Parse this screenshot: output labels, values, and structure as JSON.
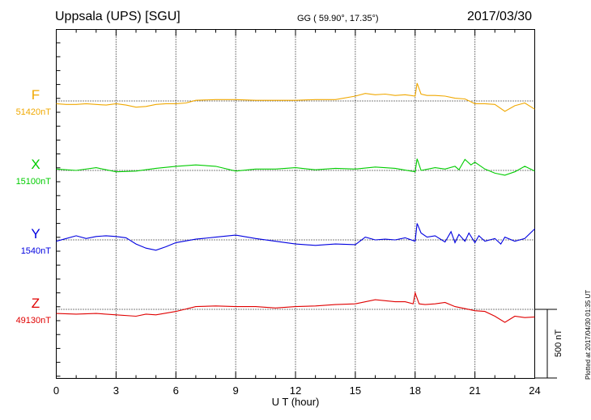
{
  "header": {
    "station": "Uppsala (UPS)  [SGU]",
    "coords": "GG ( 59.90°,  17.35°)",
    "date": "2017/03/30"
  },
  "footer": {
    "plotted": "Plotted at 2017/04/30 01:35 UT",
    "scale_label": "500 nT"
  },
  "chart_data": {
    "type": "line",
    "xlabel": "U T (hour)",
    "xlim": [
      0,
      24
    ],
    "xticks": [
      "0",
      "3",
      "6",
      "9",
      "12",
      "15",
      "18",
      "21",
      "24"
    ],
    "scale_bar_nT": 500,
    "grid": "dotted vertical every 3 h, dotted baseline per component",
    "series": [
      {
        "name": "F",
        "baseline_label": "51420nT",
        "color": "#f0a800",
        "x": [
          0,
          0.5,
          1,
          1.5,
          2,
          2.5,
          3,
          3.5,
          4,
          4.5,
          5,
          5.5,
          6,
          6.5,
          7,
          8,
          9,
          10,
          11,
          12,
          13,
          14,
          15,
          15.5,
          16,
          16.5,
          17,
          17.5,
          18,
          18.1,
          18.3,
          18.6,
          19,
          19.5,
          20,
          20.5,
          21,
          21.5,
          22,
          22.5,
          23,
          23.5,
          24
        ],
        "y": [
          -20,
          -25,
          -25,
          -20,
          -25,
          -30,
          -20,
          -30,
          -45,
          -40,
          -25,
          -20,
          -20,
          -15,
          5,
          10,
          10,
          5,
          5,
          5,
          10,
          10,
          35,
          55,
          45,
          50,
          40,
          45,
          35,
          130,
          50,
          40,
          40,
          35,
          20,
          15,
          -20,
          -20,
          -25,
          -75,
          -35,
          -15,
          -60
        ]
      },
      {
        "name": "X",
        "baseline_label": "15100nT",
        "color": "#00cc00",
        "x": [
          0,
          1,
          2,
          3,
          4,
          5,
          6,
          7,
          8,
          9,
          10,
          11,
          12,
          13,
          14,
          15,
          16,
          17,
          18,
          18.1,
          18.3,
          19,
          19.5,
          20,
          20.2,
          20.5,
          20.8,
          21,
          21.5,
          22,
          22.5,
          23,
          23.5,
          24
        ],
        "y": [
          10,
          0,
          20,
          -10,
          -5,
          15,
          30,
          40,
          30,
          -5,
          10,
          10,
          20,
          5,
          15,
          10,
          25,
          15,
          -10,
          85,
          0,
          20,
          10,
          30,
          5,
          80,
          40,
          60,
          10,
          -20,
          -35,
          -10,
          30,
          -5
        ]
      },
      {
        "name": "Y",
        "baseline_label": "1540nT",
        "color": "#0000e0",
        "x": [
          0,
          0.5,
          1,
          1.5,
          2,
          2.5,
          3,
          3.5,
          4,
          4.5,
          5,
          5.5,
          6,
          7,
          8,
          9,
          10,
          11,
          12,
          13,
          14,
          15,
          15.5,
          16,
          16.5,
          17,
          17.5,
          18,
          18.1,
          18.3,
          18.6,
          19,
          19.5,
          19.8,
          20,
          20.2,
          20.5,
          20.7,
          21,
          21.2,
          21.5,
          22,
          22.3,
          22.5,
          23,
          23.5,
          24
        ],
        "y": [
          -10,
          10,
          30,
          10,
          25,
          30,
          25,
          15,
          -30,
          -60,
          -75,
          -50,
          -20,
          5,
          20,
          35,
          10,
          -10,
          -30,
          -40,
          -30,
          -35,
          20,
          0,
          5,
          0,
          15,
          -10,
          120,
          50,
          20,
          30,
          -15,
          60,
          -20,
          40,
          -10,
          50,
          -20,
          30,
          -10,
          10,
          -30,
          20,
          -10,
          10,
          80
        ]
      },
      {
        "name": "Z",
        "baseline_label": "49130nT",
        "color": "#e00000",
        "x": [
          0,
          1,
          2,
          3,
          4,
          4.5,
          5,
          6,
          7,
          8,
          9,
          10,
          11,
          12,
          13,
          14,
          15,
          16,
          17,
          17.5,
          17.9,
          18,
          18.2,
          18.5,
          19,
          19.5,
          20,
          20.5,
          21,
          21.5,
          22,
          22.5,
          23,
          23.5,
          24
        ],
        "y": [
          -30,
          -35,
          -30,
          -40,
          -50,
          -35,
          -40,
          -15,
          20,
          25,
          20,
          20,
          10,
          20,
          25,
          35,
          40,
          70,
          55,
          55,
          40,
          120,
          40,
          35,
          40,
          50,
          20,
          5,
          -10,
          -15,
          -50,
          -95,
          -50,
          -60,
          -55
        ]
      }
    ]
  }
}
